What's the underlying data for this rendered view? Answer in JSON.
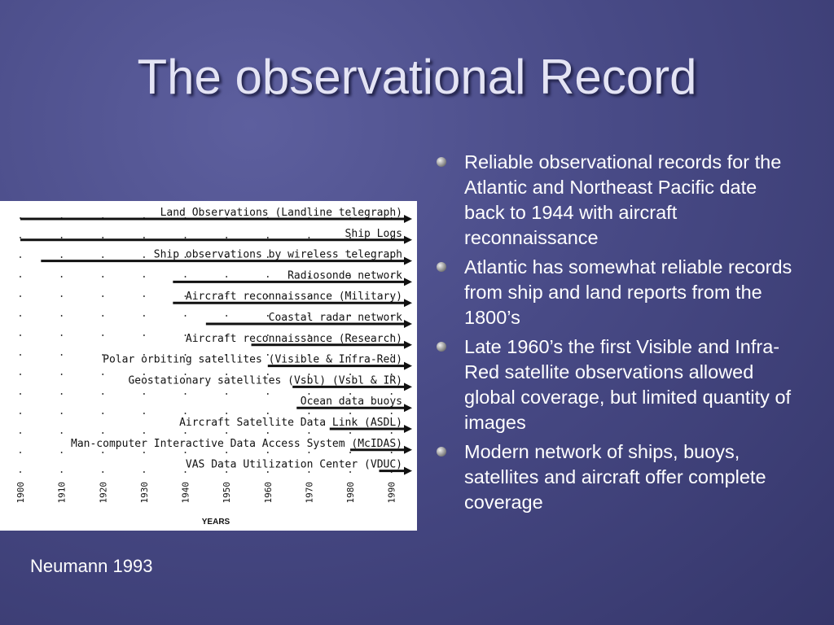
{
  "title": "The observational Record",
  "bullets": [
    "Reliable observational records for the Atlantic and Northeast Pacific date back to 1944 with aircraft reconnaissance",
    "Atlantic has somewhat reliable records from ship and land reports from the 1800’s",
    "Late 1960’s the first Visible and Infra-Red satellite observations allowed global coverage, but limited quantity of images",
    "Modern network of ships, buoys, satellites and aircraft offer complete coverage"
  ],
  "figure": {
    "type": "timeline",
    "xlim": [
      1900,
      1995
    ],
    "xticks": [
      1900,
      1910,
      1920,
      1930,
      1940,
      1950,
      1960,
      1970,
      1980,
      1990
    ],
    "xlabel": "YEARS",
    "rows": [
      {
        "label": "Land Observations (Landline telegraph)",
        "start": 1900
      },
      {
        "label": "Ship Logs",
        "start": 1900
      },
      {
        "label": "Ship observations by wireless telegraph",
        "start": 1905
      },
      {
        "label": "Radiosonde network",
        "start": 1937
      },
      {
        "label": "Aircraft reconnaissance (Military)",
        "start": 1937
      },
      {
        "label": "Coastal radar network",
        "start": 1945
      },
      {
        "label": "Aircraft reconnaissance (Research)",
        "start": 1956
      },
      {
        "label": "Polar orbiting satellites (Visible & Infra-Red)",
        "start": 1960
      },
      {
        "label": "Geostationary satellites (Vsbl) (Vsbl & IR)",
        "start": 1966
      },
      {
        "label": "Ocean data buoys",
        "start": 1967
      },
      {
        "label": "Aircraft Satellite Data Link (ASDL)",
        "start": 1975
      },
      {
        "label": "Man-computer Interactive Data Access System (McIDAS)",
        "start": 1980
      },
      {
        "label": "VAS Data Utilization Center (VDUC)",
        "start": 1987
      }
    ]
  },
  "caption": "Neumann 1993"
}
